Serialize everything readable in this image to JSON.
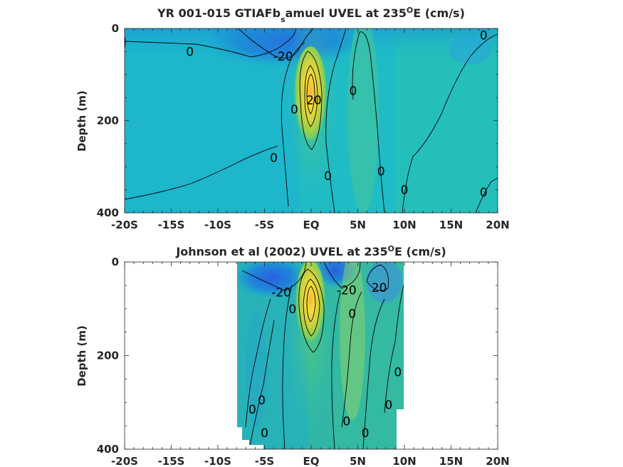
{
  "chart_data": [
    {
      "type": "heatmap",
      "title_main": "YR 001-015 GTIAFb",
      "title_sub": "s",
      "title_rest": "amuel UVEL at 235",
      "title_sup": "O",
      "title_end": "E (cm/s)",
      "ylabel": "Depth (m)",
      "x_ticks": [
        "-20S",
        "-15S",
        "-10S",
        "-5S",
        "EQ",
        "5N",
        "10N",
        "15N",
        "20N"
      ],
      "x_tick_values": [
        -20,
        -15,
        -10,
        -5,
        0,
        5,
        10,
        15,
        20
      ],
      "y_ticks": [
        "0",
        "200",
        "400"
      ],
      "y_tick_values": [
        0,
        200,
        400
      ],
      "xlim": [
        -20,
        20
      ],
      "ylim": [
        400,
        0
      ],
      "data_extent_x": [
        -20,
        20
      ],
      "contour_labels": [
        {
          "text": "0",
          "x": -13,
          "y": 50
        },
        {
          "text": "-20",
          "x": -3,
          "y": 60
        },
        {
          "text": "0",
          "x": 18.5,
          "y": 15
        },
        {
          "text": "20",
          "x": 0.3,
          "y": 155
        },
        {
          "text": "0",
          "x": -1.8,
          "y": 175
        },
        {
          "text": "0",
          "x": 4.5,
          "y": 135
        },
        {
          "text": "0",
          "x": -4,
          "y": 280
        },
        {
          "text": "0",
          "x": 1.8,
          "y": 320
        },
        {
          "text": "0",
          "x": 7.5,
          "y": 310
        },
        {
          "text": "0",
          "x": 10,
          "y": 350
        },
        {
          "text": "0",
          "x": 18.5,
          "y": 355
        }
      ],
      "jet_core": {
        "x": 0,
        "y": 130,
        "max_value": 100
      },
      "colors": {
        "background": "#1fbcc6",
        "negative": "#2e7dee",
        "positive": "#f5d63a"
      }
    },
    {
      "type": "heatmap",
      "title_main": "Johnson et al (2002) UVEL at 235",
      "title_sup": "O",
      "title_end": "E (cm/s)",
      "ylabel": "Depth (m)",
      "x_ticks": [
        "-20S",
        "-15S",
        "-10S",
        "-5S",
        "EQ",
        "5N",
        "10N",
        "15N",
        "20N"
      ],
      "x_tick_values": [
        -20,
        -15,
        -10,
        -5,
        0,
        5,
        10,
        15,
        20
      ],
      "y_ticks": [
        "0",
        "200",
        "400"
      ],
      "y_tick_values": [
        0,
        200,
        400
      ],
      "xlim": [
        -20,
        20
      ],
      "ylim": [
        400,
        0
      ],
      "data_extent_x": [
        -8,
        10
      ],
      "contour_labels": [
        {
          "text": "-20",
          "x": -3.2,
          "y": 65
        },
        {
          "text": "-20",
          "x": 3.8,
          "y": 60
        },
        {
          "text": "20",
          "x": 7.3,
          "y": 55
        },
        {
          "text": "0",
          "x": -2.0,
          "y": 100
        },
        {
          "text": "0",
          "x": 4.4,
          "y": 110
        },
        {
          "text": "0",
          "x": 9.3,
          "y": 235
        },
        {
          "text": "0",
          "x": -6.3,
          "y": 315
        },
        {
          "text": "0",
          "x": -5.3,
          "y": 295
        },
        {
          "text": "0",
          "x": 3.8,
          "y": 340
        },
        {
          "text": "0",
          "x": 8.3,
          "y": 305
        },
        {
          "text": "0",
          "x": -5.0,
          "y": 365
        },
        {
          "text": "0",
          "x": 5.8,
          "y": 365
        }
      ],
      "jet_core": {
        "x": 0,
        "y": 90,
        "max_value": 100
      },
      "colors": {
        "background": "#2fb6a5",
        "negative": "#2e7dee",
        "positive": "#f5d63a"
      }
    }
  ]
}
